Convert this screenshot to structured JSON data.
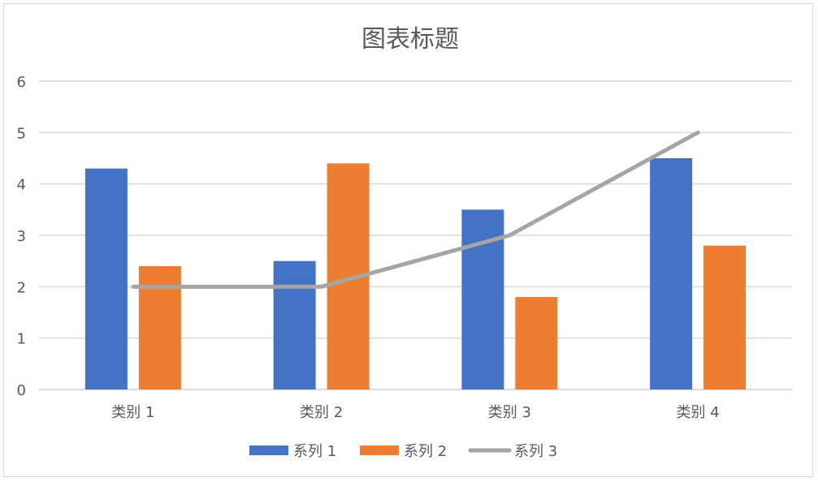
{
  "chart_data": {
    "type": "bar",
    "title": "图表标题",
    "categories": [
      "类别 1",
      "类别 2",
      "类别 3",
      "类别 4"
    ],
    "series": [
      {
        "name": "系列 1",
        "type": "bar",
        "color": "#4472C4",
        "values": [
          4.3,
          2.5,
          3.5,
          4.5
        ]
      },
      {
        "name": "系列 2",
        "type": "bar",
        "color": "#ED7D31",
        "values": [
          2.4,
          4.4,
          1.8,
          2.8
        ]
      },
      {
        "name": "系列 3",
        "type": "line",
        "color": "#A5A5A5",
        "values": [
          2,
          2,
          3,
          5
        ]
      }
    ],
    "yticks": [
      "0",
      "1",
      "2",
      "3",
      "4",
      "5",
      "6"
    ],
    "ylim": [
      0,
      6
    ],
    "grid": true,
    "legend_position": "bottom"
  }
}
